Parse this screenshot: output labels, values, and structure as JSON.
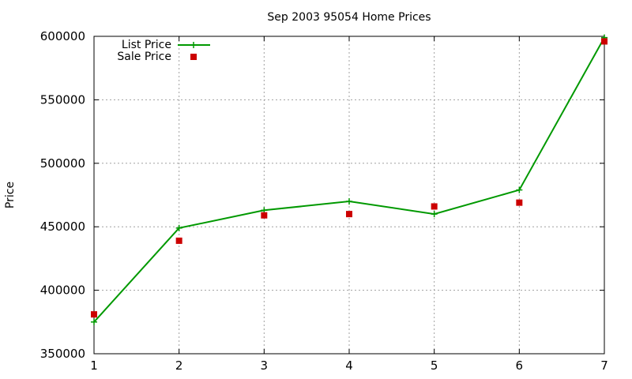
{
  "chart_data": {
    "type": "line",
    "title": "Sep 2003 95054 Home Prices",
    "xlabel": "",
    "ylabel": "Price",
    "x": [
      1,
      2,
      3,
      4,
      5,
      6,
      7
    ],
    "xlim": [
      1,
      7
    ],
    "ylim": [
      350000,
      600000
    ],
    "xticks": [
      "1",
      "2",
      "3",
      "4",
      "5",
      "6",
      "7"
    ],
    "yticks": [
      "350000",
      "400000",
      "450000",
      "500000",
      "550000",
      "600000"
    ],
    "grid": true,
    "legend_position": "top-left",
    "series": [
      {
        "name": "List Price",
        "style": "line-points",
        "color": "#009900",
        "values": [
          375000,
          449000,
          463000,
          470000,
          460000,
          479000,
          599000
        ]
      },
      {
        "name": "Sale Price",
        "style": "points",
        "color": "#cc0000",
        "values": [
          381000,
          439000,
          459000,
          460000,
          466000,
          469000,
          596000
        ]
      }
    ]
  }
}
